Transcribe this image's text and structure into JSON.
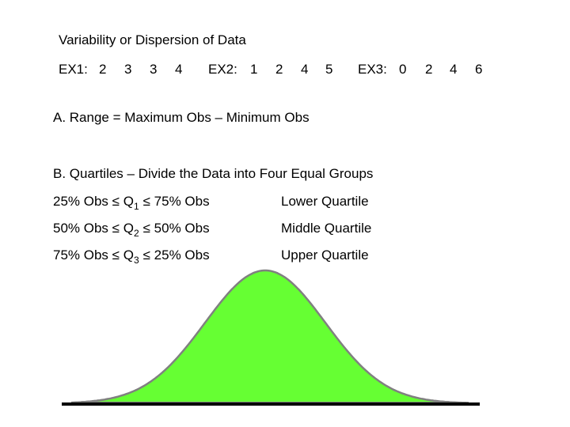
{
  "title": "Variability or Dispersion of Data",
  "examples": [
    {
      "label": "EX1:",
      "values": [
        2,
        3,
        3,
        4
      ]
    },
    {
      "label": "EX2:",
      "values": [
        1,
        2,
        4,
        5
      ]
    },
    {
      "label": "EX3:",
      "values": [
        0,
        2,
        4,
        6
      ]
    }
  ],
  "range": {
    "text": "A.  Range = Maximum Obs – Minimum Obs"
  },
  "quartiles": {
    "heading": "B.  Quartiles – Divide the Data into Four Equal Groups",
    "rows": [
      {
        "before": "25% Obs ≤ Q",
        "subscript": "1",
        "after": "≤ 75% Obs",
        "name": "Lower Quartile"
      },
      {
        "before": "50% Obs ≤ Q",
        "subscript": "2",
        "after": "≤ 50% Obs",
        "name": "Middle Quartile"
      },
      {
        "before": "75% Obs ≤ Q",
        "subscript": "3",
        "after": "≤ 25% Obs",
        "name": "Upper Quartile"
      }
    ]
  }
}
